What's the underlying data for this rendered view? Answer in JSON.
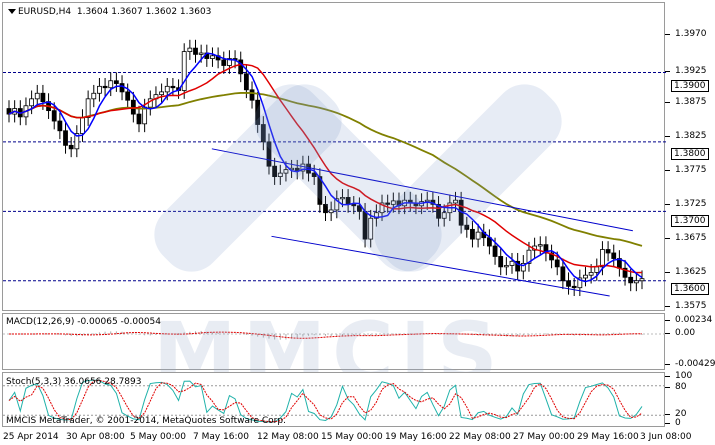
{
  "header": {
    "symbol": "EURUSD,H4",
    "ohlc": "1.3604 1.3607 1.3602 1.3603"
  },
  "price_axis": {
    "ticks": [
      "1.3970",
      "1.3925",
      "1.3875",
      "1.3825",
      "1.3775",
      "1.3725",
      "1.3675",
      "1.3625",
      "1.3575"
    ],
    "tags": [
      "1.3900",
      "1.3800",
      "1.3700",
      "1.3600"
    ]
  },
  "macd": {
    "label": "MACD(12,26,9) -0.00065 -0.00054",
    "ticks": [
      "0.00234",
      "0.00",
      "-0.00429"
    ]
  },
  "stoch": {
    "label": "Stoch(5,3,3) 36.0656 28.7893",
    "ticks": [
      "100",
      "80",
      "20",
      "0"
    ]
  },
  "footer": {
    "copyright": "MMCIS MetaTrader, © 2001-2014, MetaQuotes Software Corp."
  },
  "time_axis": {
    "ticks": [
      "25 Apr 2014",
      "30 Apr 08:00",
      "5 May 00:00",
      "7 May 16:00",
      "12 May 08:00",
      "15 May 00:00",
      "19 May 16:00",
      "22 May 08:00",
      "27 May 00:00",
      "29 May 16:00",
      "3 Jun 08:00"
    ]
  },
  "watermark": {
    "text": "MMCIS"
  },
  "colors": {
    "ma_fast": "#0000ff",
    "ma_mid": "#e00000",
    "ma_slow": "#808000",
    "level": "#00008b"
  },
  "chart_data": {
    "type": "candlestick",
    "symbol": "EURUSD",
    "timeframe": "H4",
    "ylim": [
      1.3555,
      1.4
    ],
    "levels": [
      1.39,
      1.38,
      1.37,
      1.36
    ],
    "close": [
      1.384,
      1.3848,
      1.3836,
      1.3852,
      1.3862,
      1.387,
      1.3858,
      1.3845,
      1.383,
      1.3816,
      1.3795,
      1.379,
      1.3812,
      1.3835,
      1.3862,
      1.387,
      1.388,
      1.3878,
      1.3888,
      1.3884,
      1.3872,
      1.386,
      1.384,
      1.3826,
      1.385,
      1.3862,
      1.3868,
      1.3872,
      1.388,
      1.3878,
      1.3874,
      1.393,
      1.3935,
      1.3926,
      1.3928,
      1.392,
      1.3924,
      1.3918,
      1.391,
      1.392,
      1.3918,
      1.3898,
      1.3875,
      1.386,
      1.3825,
      1.38,
      1.3765,
      1.375,
      1.3755,
      1.376,
      1.3762,
      1.3758,
      1.3768,
      1.3755,
      1.375,
      1.371,
      1.3698,
      1.3702,
      1.3718,
      1.372,
      1.371,
      1.3708,
      1.37,
      1.366,
      1.369,
      1.3698,
      1.3712,
      1.371,
      1.3715,
      1.3708,
      1.3716,
      1.3712,
      1.3708,
      1.3714,
      1.3716,
      1.371,
      1.369,
      1.3698,
      1.3712,
      1.3716,
      1.368,
      1.3674,
      1.366,
      1.367,
      1.3662,
      1.365,
      1.3635,
      1.362,
      1.3622,
      1.3628,
      1.3614,
      1.3625,
      1.3644,
      1.365,
      1.3652,
      1.364,
      1.363,
      1.362,
      1.36,
      1.3592,
      1.359,
      1.3604,
      1.3608,
      1.3612,
      1.362,
      1.3645,
      1.364,
      1.3632,
      1.3618,
      1.3605,
      1.3597,
      1.36,
      1.3603
    ],
    "channel_upper": [
      [
        1.379,
        0.315
      ],
      [
        1.3672,
        0.95
      ]
    ],
    "channel_lower": [
      [
        1.3664,
        0.405
      ],
      [
        1.3578,
        0.915
      ]
    ]
  }
}
